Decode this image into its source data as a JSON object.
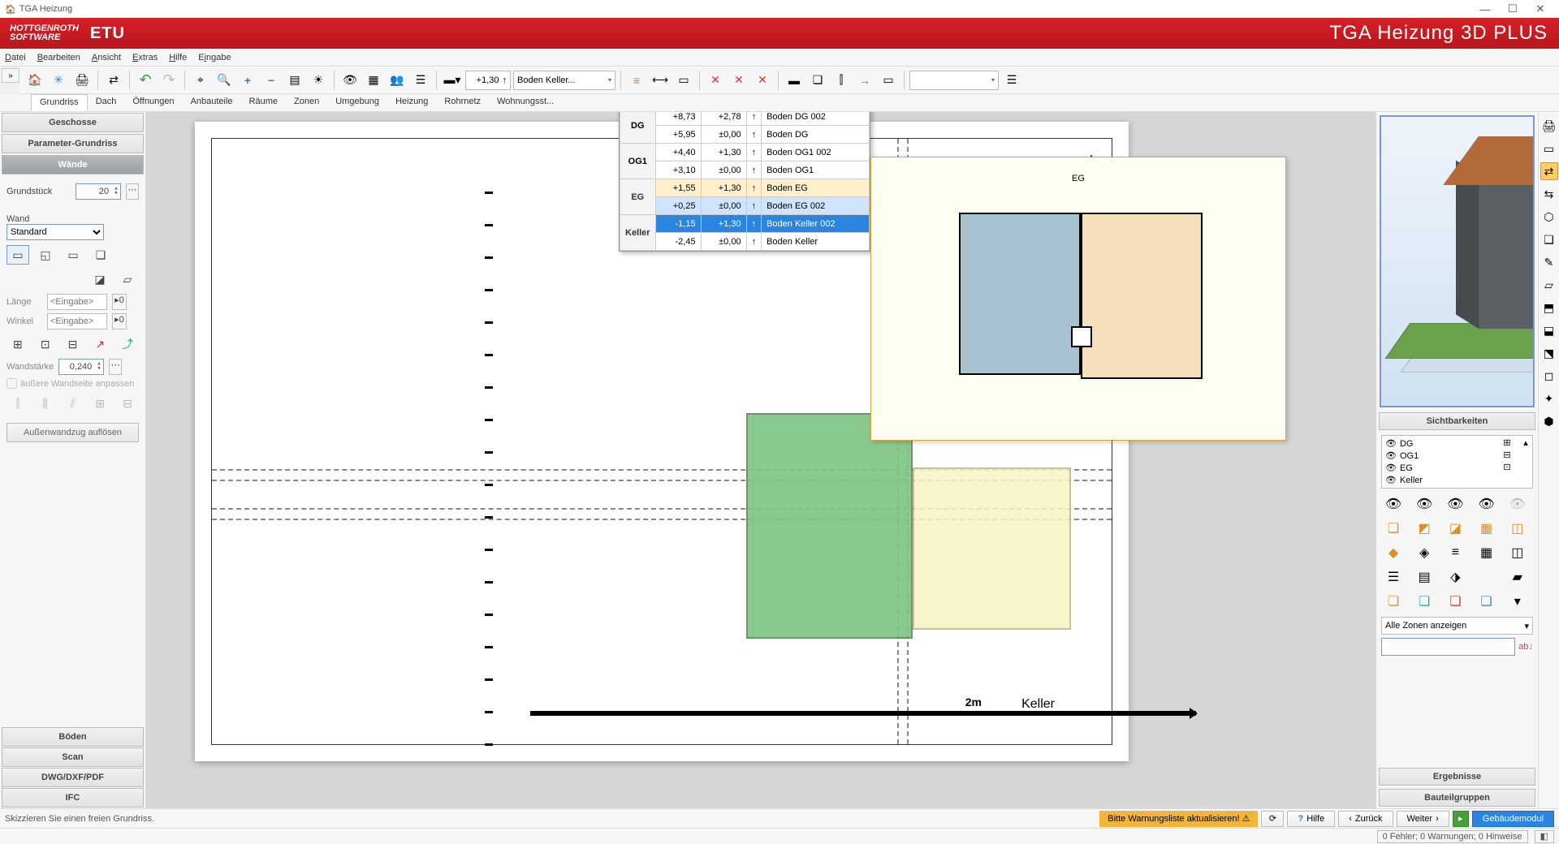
{
  "window": {
    "title": "TGA Heizung",
    "minimize": "—",
    "maximize": "☐",
    "close": "✕"
  },
  "brand": {
    "logo_l1": "HOTTGENROTH",
    "logo_l2": "SOFTWARE",
    "etu": "ETU",
    "title": "TGA Heizung  3D PLUS"
  },
  "menu": [
    "Datei",
    "Bearbeiten",
    "Ansicht",
    "Extras",
    "Hilfe",
    "Eingabe"
  ],
  "collapse": "»",
  "toolbar": {
    "home": "🏠",
    "burst": "✳",
    "print": "🖨",
    "exchange": "⇄",
    "undo": "↶",
    "redo": "↷",
    "zoomwin": "⌖",
    "zoom": "🔍",
    "zoomin": "+",
    "zoomout": "−",
    "layers": "▤",
    "sun": "☀",
    "eye": "👁",
    "grid": "▦",
    "people": "👥",
    "list": "☰",
    "floor_val": "+1,30",
    "floor_arrow": "↑",
    "floor_label": "Boden Keller...",
    "caret": "▾",
    "list2": "≡",
    "dim": "⟷",
    "align": "▭",
    "x1": "✕",
    "x2": "✕",
    "x3": "✕",
    "wall": "▬",
    "cube": "❏",
    "col": "⫿",
    "arrow": "→",
    "sheet": "▭",
    "searchbox": ""
  },
  "subtabs": [
    "Grundriss",
    "Dach",
    "Öffnungen",
    "Anbauteile",
    "Räume",
    "Zonen",
    "Umgebung",
    "Heizung",
    "Rohrnetz",
    "Wohnungsst..."
  ],
  "left": {
    "sections": {
      "geschosse": "Geschosse",
      "param": "Parameter-Grundriss",
      "waende": "Wände",
      "boeden": "Böden",
      "scan": "Scan",
      "dwg": "DWG/DXF/PDF",
      "ifc": "IFC"
    },
    "grundstueck_lbl": "Grundstück",
    "grundstueck_val": "20",
    "wand_lbl": "Wand",
    "wand_sel": "Standard",
    "laenge_lbl": "Länge",
    "laenge_ph": "<Eingabe>",
    "winkel_lbl": "Winkel",
    "winkel_ph": "<Eingabe>",
    "wandstaerke_lbl": "Wandstärke",
    "wandstaerke_val": "0,240",
    "cb_lbl": "äußere Wandseite anpassen",
    "btn_lbl": "Außenwandzug auflösen"
  },
  "floor_table": {
    "groups": [
      "DG",
      "OG1",
      "EG",
      "Keller"
    ],
    "rows": [
      {
        "g": "DG",
        "v1": "+8,73",
        "v2": "+2,78",
        "name": "Boden DG 002"
      },
      {
        "g": "DG",
        "v1": "+5,95",
        "v2": "±0,00",
        "name": "Boden DG"
      },
      {
        "g": "OG1",
        "v1": "+4,40",
        "v2": "+1,30",
        "name": "Boden OG1 002"
      },
      {
        "g": "OG1",
        "v1": "+3,10",
        "v2": "±0,00",
        "name": "Boden OG1"
      },
      {
        "g": "EG",
        "v1": "+1,55",
        "v2": "+1,30",
        "name": "Boden EG",
        "hl": 1
      },
      {
        "g": "EG",
        "v1": "+0,25",
        "v2": "±0,00",
        "name": "Boden EG 002",
        "hl": 2
      },
      {
        "g": "Keller",
        "v1": "-1,15",
        "v2": "+1,30",
        "name": "Boden Keller 002",
        "sel": 1
      },
      {
        "g": "Keller",
        "v1": "-2,45",
        "v2": "±0,00",
        "name": "Boden Keller"
      }
    ],
    "arrow": "↑"
  },
  "mini": {
    "label": "EG"
  },
  "paper": {
    "scale": "2m",
    "floor": "Keller",
    "north": "▲"
  },
  "right": {
    "sicht": "Sichtbarkeiten",
    "floors": [
      "DG",
      "OG1",
      "EG",
      "Keller"
    ],
    "eye": "👁",
    "zone_label": "Alle Zonen anzeigen",
    "zone_caret": "▾",
    "erg": "Ergebnisse",
    "bau": "Bauteilgruppen",
    "abc": "ab↓"
  },
  "rtoolbar": [
    "🖨",
    "▭",
    "⇄",
    "⇆",
    "⬡",
    "❏",
    "✎",
    "▱",
    "⬒",
    "⬓",
    "⬔",
    "◻",
    "✦",
    "⬢"
  ],
  "footer": {
    "status": "Skizzieren Sie einen freien Grundriss.",
    "warn": "Bitte Warnungsliste aktualisieren!",
    "warn_ic": "⚠",
    "refresh": "⟳",
    "help": "Hilfe",
    "help_ic": "?",
    "back": "Zurück",
    "back_ic": "‹",
    "next": "Weiter",
    "next_ic": "›",
    "module": "Gebäudemodul",
    "errs": "0 Fehler; 0 Warnungen; 0 Hinweise",
    "sc": "◧"
  }
}
